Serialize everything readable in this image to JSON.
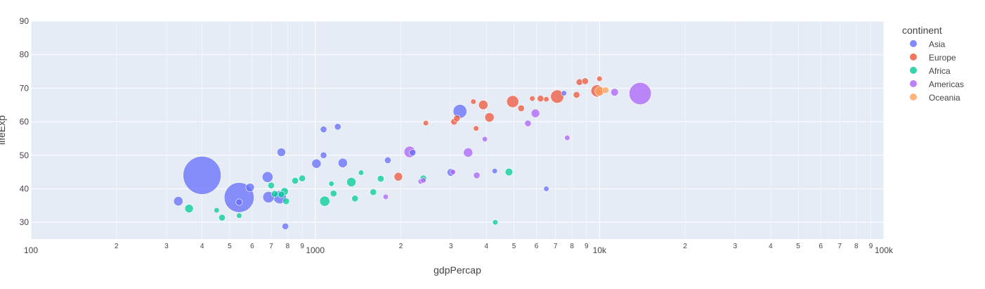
{
  "chart_data": {
    "type": "scatter",
    "xlabel": "gdpPercap",
    "ylabel": "lifeExp",
    "x_scale": "log",
    "xlim": [
      100,
      100000
    ],
    "ylim": [
      25,
      90
    ],
    "x_major_ticks": [
      {
        "value": 100,
        "label": "100"
      },
      {
        "value": 1000,
        "label": "1000"
      },
      {
        "value": 10000,
        "label": "10k"
      },
      {
        "value": 100000,
        "label": "100k"
      }
    ],
    "x_minor_ticks": [
      {
        "value": 200,
        "label": "2"
      },
      {
        "value": 300,
        "label": "3"
      },
      {
        "value": 400,
        "label": "4"
      },
      {
        "value": 500,
        "label": "5"
      },
      {
        "value": 600,
        "label": "6"
      },
      {
        "value": 700,
        "label": "7"
      },
      {
        "value": 800,
        "label": "8"
      },
      {
        "value": 900,
        "label": "9"
      },
      {
        "value": 2000,
        "label": "2"
      },
      {
        "value": 3000,
        "label": "3"
      },
      {
        "value": 4000,
        "label": "4"
      },
      {
        "value": 5000,
        "label": "5"
      },
      {
        "value": 6000,
        "label": "6"
      },
      {
        "value": 7000,
        "label": "7"
      },
      {
        "value": 8000,
        "label": "8"
      },
      {
        "value": 9000,
        "label": "9"
      },
      {
        "value": 20000,
        "label": "2"
      },
      {
        "value": 30000,
        "label": "3"
      },
      {
        "value": 40000,
        "label": "4"
      },
      {
        "value": 50000,
        "label": "5"
      },
      {
        "value": 60000,
        "label": "6"
      },
      {
        "value": 70000,
        "label": "7"
      },
      {
        "value": 80000,
        "label": "8"
      },
      {
        "value": 90000,
        "label": "9"
      }
    ],
    "y_ticks": [
      30,
      40,
      50,
      60,
      70,
      80,
      90
    ],
    "grid": true,
    "legend": {
      "title": "continent",
      "placement": "right"
    },
    "series": [
      {
        "name": "Asia",
        "color": "#636efa",
        "points": [
          {
            "x": 400,
            "y": 44,
            "size": 100
          },
          {
            "x": 540,
            "y": 37.4,
            "size": 62
          },
          {
            "x": 330,
            "y": 36.3,
            "size": 6
          },
          {
            "x": 540,
            "y": 36.0,
            "size": 3
          },
          {
            "x": 590,
            "y": 40.4,
            "size": 5
          },
          {
            "x": 680,
            "y": 43.5,
            "size": 8
          },
          {
            "x": 685,
            "y": 37.5,
            "size": 9
          },
          {
            "x": 750,
            "y": 37.5,
            "size": 12
          },
          {
            "x": 760,
            "y": 50.9,
            "size": 5
          },
          {
            "x": 785,
            "y": 28.8,
            "size": 3
          },
          {
            "x": 1010,
            "y": 47.5,
            "size": 6
          },
          {
            "x": 1070,
            "y": 57.7,
            "size": 3
          },
          {
            "x": 1070,
            "y": 50.0,
            "size": 3
          },
          {
            "x": 1200,
            "y": 58.5,
            "size": 3
          },
          {
            "x": 1250,
            "y": 47.7,
            "size": 6
          },
          {
            "x": 1800,
            "y": 48.5,
            "size": 3
          },
          {
            "x": 2200,
            "y": 50.8,
            "size": 3
          },
          {
            "x": 3000,
            "y": 44.9,
            "size": 4
          },
          {
            "x": 3230,
            "y": 63.1,
            "size": 13
          },
          {
            "x": 4280,
            "y": 45.3,
            "size": 2
          },
          {
            "x": 6500,
            "y": 40.0,
            "size": 2
          },
          {
            "x": 7500,
            "y": 68.5,
            "size": 2
          }
        ]
      },
      {
        "name": "Europe",
        "color": "#ef553b",
        "points": [
          {
            "x": 1960,
            "y": 43.6,
            "size": 5
          },
          {
            "x": 2450,
            "y": 59.6,
            "size": 2
          },
          {
            "x": 3080,
            "y": 60.0,
            "size": 3
          },
          {
            "x": 3150,
            "y": 61.0,
            "size": 3
          },
          {
            "x": 3600,
            "y": 66.0,
            "size": 2
          },
          {
            "x": 3680,
            "y": 58.0,
            "size": 2
          },
          {
            "x": 3900,
            "y": 65.0,
            "size": 6
          },
          {
            "x": 4100,
            "y": 61.3,
            "size": 6
          },
          {
            "x": 4950,
            "y": 66.0,
            "size": 10
          },
          {
            "x": 5300,
            "y": 64.0,
            "size": 3
          },
          {
            "x": 5800,
            "y": 66.9,
            "size": 2
          },
          {
            "x": 6200,
            "y": 66.9,
            "size": 3
          },
          {
            "x": 6500,
            "y": 66.7,
            "size": 2
          },
          {
            "x": 7100,
            "y": 67.5,
            "size": 12
          },
          {
            "x": 8300,
            "y": 68.0,
            "size": 3
          },
          {
            "x": 8500,
            "y": 71.8,
            "size": 3
          },
          {
            "x": 8900,
            "y": 72.1,
            "size": 3
          },
          {
            "x": 9800,
            "y": 69.2,
            "size": 10
          },
          {
            "x": 10000,
            "y": 72.8,
            "size": 2
          }
        ]
      },
      {
        "name": "Africa",
        "color": "#00cc96",
        "points": [
          {
            "x": 360,
            "y": 34.1,
            "size": 5
          },
          {
            "x": 450,
            "y": 33.6,
            "size": 2
          },
          {
            "x": 470,
            "y": 31.4,
            "size": 3
          },
          {
            "x": 540,
            "y": 32.0,
            "size": 2
          },
          {
            "x": 700,
            "y": 41.0,
            "size": 3
          },
          {
            "x": 720,
            "y": 38.5,
            "size": 3
          },
          {
            "x": 760,
            "y": 38.3,
            "size": 3
          },
          {
            "x": 780,
            "y": 39.2,
            "size": 4
          },
          {
            "x": 790,
            "y": 36.3,
            "size": 3
          },
          {
            "x": 850,
            "y": 42.4,
            "size": 3
          },
          {
            "x": 900,
            "y": 43.1,
            "size": 3
          },
          {
            "x": 1080,
            "y": 36.3,
            "size": 7
          },
          {
            "x": 1140,
            "y": 41.5,
            "size": 2
          },
          {
            "x": 1160,
            "y": 38.6,
            "size": 3
          },
          {
            "x": 1340,
            "y": 42.0,
            "size": 6
          },
          {
            "x": 1380,
            "y": 37.1,
            "size": 3
          },
          {
            "x": 1450,
            "y": 44.8,
            "size": 2
          },
          {
            "x": 1600,
            "y": 39.0,
            "size": 3
          },
          {
            "x": 1700,
            "y": 43.0,
            "size": 3
          },
          {
            "x": 2400,
            "y": 43.1,
            "size": 3
          },
          {
            "x": 4800,
            "y": 45.0,
            "size": 4
          },
          {
            "x": 4300,
            "y": 30.0,
            "size": 2
          }
        ]
      },
      {
        "name": "Americas",
        "color": "#ab63fa",
        "points": [
          {
            "x": 1770,
            "y": 37.6,
            "size": 2
          },
          {
            "x": 2150,
            "y": 51.0,
            "size": 9
          },
          {
            "x": 2350,
            "y": 42.2,
            "size": 2
          },
          {
            "x": 2400,
            "y": 42.5,
            "size": 2
          },
          {
            "x": 3050,
            "y": 45.0,
            "size": 2
          },
          {
            "x": 3450,
            "y": 50.8,
            "size": 6
          },
          {
            "x": 3700,
            "y": 44.0,
            "size": 3
          },
          {
            "x": 3950,
            "y": 54.8,
            "size": 2
          },
          {
            "x": 5600,
            "y": 59.5,
            "size": 3
          },
          {
            "x": 5950,
            "y": 62.5,
            "size": 5
          },
          {
            "x": 7700,
            "y": 55.2,
            "size": 2
          },
          {
            "x": 11300,
            "y": 68.8,
            "size": 4
          },
          {
            "x": 13900,
            "y": 68.4,
            "size": 34
          }
        ]
      },
      {
        "name": "Oceania",
        "color": "#ffa15a",
        "points": [
          {
            "x": 10000,
            "y": 69.1,
            "size": 6
          },
          {
            "x": 10500,
            "y": 69.4,
            "size": 3
          }
        ]
      }
    ]
  }
}
